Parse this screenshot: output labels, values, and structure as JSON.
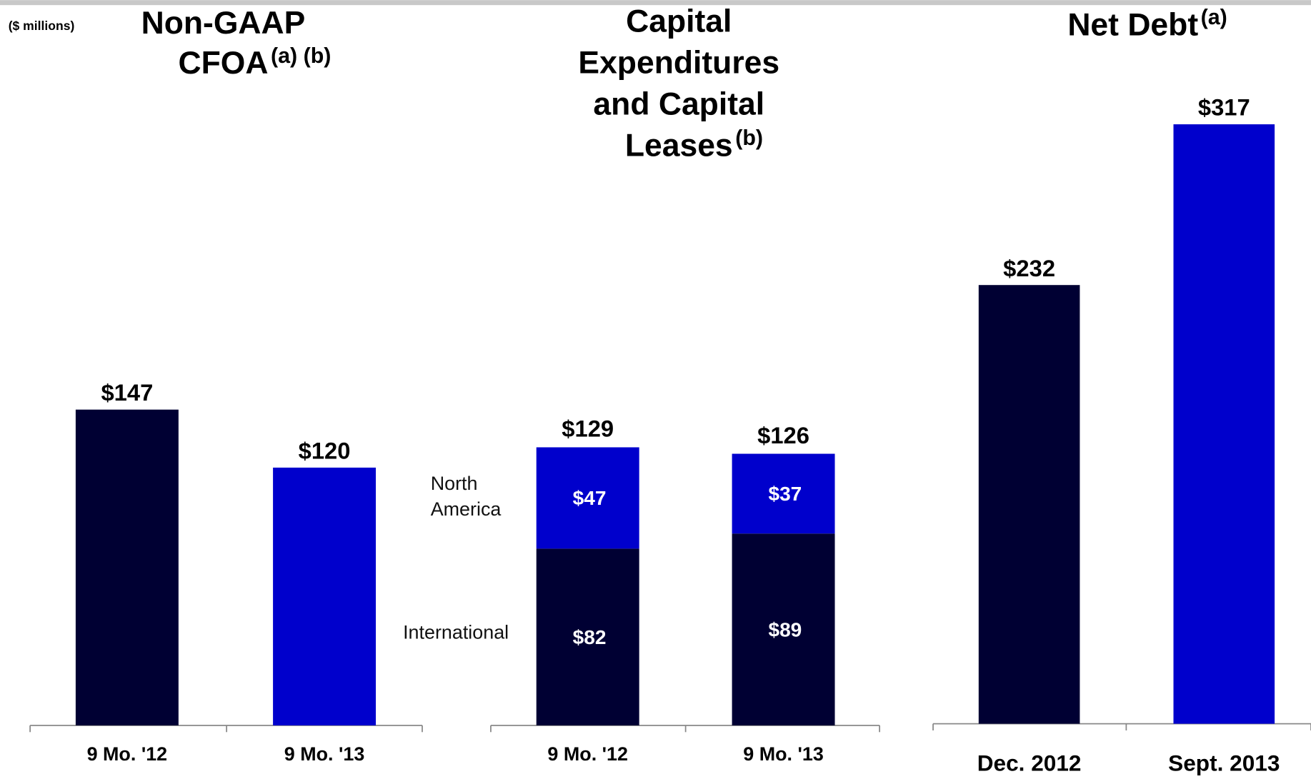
{
  "units": "($ millions)",
  "chart_data": [
    {
      "type": "bar",
      "title": [
        "Non-GAAP",
        "CFOA"
      ],
      "title_note": "(a) (b)",
      "categories": [
        "9 Mo. '12",
        "9 Mo. '13"
      ],
      "values": [
        147,
        120
      ],
      "value_labels": [
        "$147",
        "$120"
      ],
      "colors": [
        "#000033",
        "#0000cc"
      ]
    },
    {
      "type": "stacked_bar",
      "title": [
        "Capital",
        "Expenditures",
        "and Capital",
        "Leases"
      ],
      "title_note": "(b)",
      "categories": [
        "9 Mo. '12",
        "9 Mo. '13"
      ],
      "series": [
        {
          "name": "International",
          "color": "#000033",
          "values": [
            82,
            89
          ],
          "value_labels": [
            "$82",
            "$89"
          ]
        },
        {
          "name": "North America",
          "color": "#0000cc",
          "values": [
            47,
            37
          ],
          "value_labels": [
            "$47",
            "$37"
          ]
        }
      ],
      "totals": [
        129,
        126
      ],
      "total_labels": [
        "$129",
        "$126"
      ]
    },
    {
      "type": "bar",
      "title": [
        "Net Debt"
      ],
      "title_note": "(a)",
      "categories": [
        "Dec. 2012",
        "Sept. 2013"
      ],
      "values": [
        232,
        317
      ],
      "value_labels": [
        "$232",
        "$317"
      ],
      "colors": [
        "#000033",
        "#0000cc"
      ]
    }
  ]
}
